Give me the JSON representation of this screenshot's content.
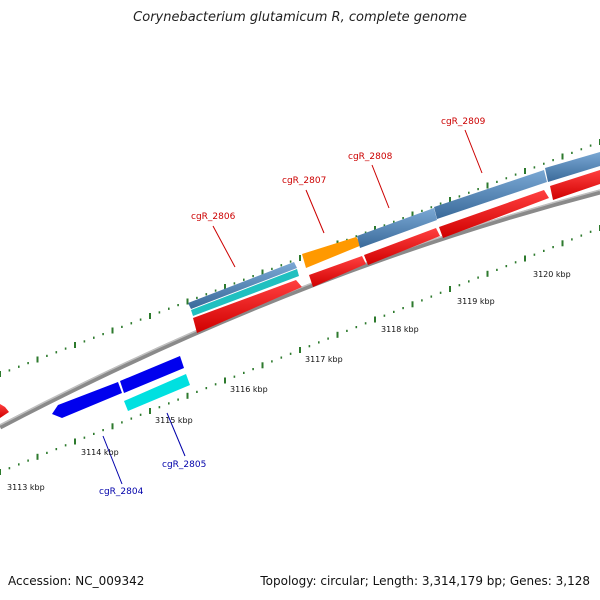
{
  "title": "Corynebacterium glutamicum R, complete genome",
  "footer": {
    "accession": "Accession: NC_009342",
    "summary": "Topology: circular; Length: 3,314,179 bp; Genes: 3,128"
  },
  "colors": {
    "backbone": "#8a8a8a",
    "ticks": "#2d7a2d",
    "label_red": "#cc0000",
    "label_blue": "#0000aa",
    "steel_blue": "#4a7fb0",
    "teal": "#20c0c0",
    "red": "#ff0000",
    "orange": "#ff9900",
    "blue": "#0000ee",
    "cyan": "#00e0e0"
  },
  "scale_labels": [
    "3113 kbp",
    "3114 kbp",
    "3115 kbp",
    "3116 kbp",
    "3117 kbp",
    "3118 kbp",
    "3119 kbp",
    "3120 kbp"
  ],
  "gene_labels": [
    {
      "id": "cgR_2804",
      "text": "cgR_2804",
      "strand": "lower"
    },
    {
      "id": "cgR_2805",
      "text": "cgR_2805",
      "strand": "lower"
    },
    {
      "id": "cgR_2806",
      "text": "cgR_2806",
      "strand": "upper"
    },
    {
      "id": "cgR_2807",
      "text": "cgR_2807",
      "strand": "upper"
    },
    {
      "id": "cgR_2808",
      "text": "cgR_2808",
      "strand": "upper"
    },
    {
      "id": "cgR_2809",
      "text": "cgR_2809",
      "strand": "upper"
    }
  ]
}
